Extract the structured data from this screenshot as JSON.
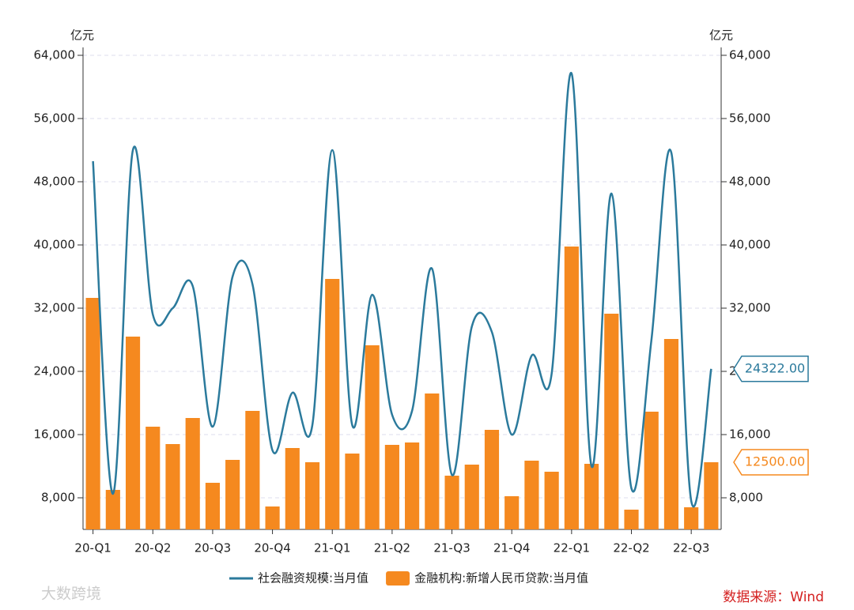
{
  "chart_data": {
    "type": "bar_line",
    "y_label": "亿元",
    "y2_label": "亿元",
    "categories": [
      "20-Q1",
      null,
      null,
      "20-Q2",
      null,
      null,
      "20-Q3",
      null,
      null,
      "20-Q4",
      null,
      null,
      "21-Q1",
      null,
      null,
      "21-Q2",
      null,
      null,
      "21-Q3",
      null,
      null,
      "21-Q4",
      null,
      null,
      "22-Q1",
      null,
      null,
      "22-Q2",
      null,
      null,
      "22-Q3",
      null
    ],
    "series": [
      {
        "name": "社会融资规模:当月值",
        "type": "line",
        "color": "#2b7a9c",
        "axis": "y2",
        "values": [
          50600,
          8500,
          52000,
          31200,
          32000,
          34800,
          17000,
          36000,
          35000,
          14000,
          21300,
          17200,
          52000,
          17200,
          33700,
          18500,
          19000,
          37000,
          10900,
          29700,
          29000,
          16000,
          26000,
          23700,
          61700,
          12000,
          46500,
          9200,
          27900,
          51700,
          7600,
          24322
        ],
        "value_labels": [
          null,
          null,
          null,
          null,
          null,
          null,
          null,
          null,
          null,
          null,
          null,
          null,
          null,
          null,
          null,
          null,
          null,
          null,
          null,
          null,
          null,
          null,
          null,
          null,
          null,
          null,
          null,
          null,
          null,
          null,
          null,
          "24322.00"
        ]
      },
      {
        "name": "金融机构:新增人民币贷款:当月值",
        "type": "bar",
        "color": "#f5891f",
        "values": [
          33300,
          9000,
          28400,
          17000,
          14800,
          18100,
          9900,
          12800,
          19000,
          6900,
          14300,
          12500,
          35700,
          13600,
          27300,
          14700,
          15000,
          21200,
          10800,
          12200,
          16600,
          8200,
          12700,
          11300,
          39800,
          12300,
          31300,
          6500,
          18900,
          28100,
          6800,
          12500
        ],
        "value_labels": [
          null,
          null,
          null,
          null,
          null,
          null,
          null,
          null,
          null,
          null,
          null,
          null,
          null,
          null,
          null,
          null,
          null,
          null,
          null,
          null,
          null,
          null,
          null,
          null,
          null,
          null,
          null,
          null,
          null,
          null,
          null,
          "12500.00"
        ]
      }
    ],
    "ylim": [
      4000,
      64000
    ],
    "yticks": [
      {
        "value": 8000,
        "label": "8,000"
      },
      {
        "value": 16000,
        "label": "16,000"
      },
      {
        "value": 24000,
        "label": "24,000"
      },
      {
        "value": 32000,
        "label": "32,000"
      },
      {
        "value": 40000,
        "label": "40,000"
      },
      {
        "value": 48000,
        "label": "48,000"
      },
      {
        "value": 56000,
        "label": "56,000"
      },
      {
        "value": 64000,
        "label": "64,000"
      }
    ],
    "y2lim": [
      4000,
      64000
    ],
    "y2ticks": [
      {
        "value": 8000,
        "label": "8,000"
      },
      {
        "value": 16000,
        "label": "16,000"
      },
      {
        "value": 24000,
        "label": "24,000"
      },
      {
        "value": 32000,
        "label": "32,000"
      },
      {
        "value": 40000,
        "label": "40,000"
      },
      {
        "value": 48000,
        "label": "48,000"
      },
      {
        "value": 56000,
        "label": "56,000"
      },
      {
        "value": 64000,
        "label": "64,000"
      }
    ],
    "grid": true,
    "legend": "bottom",
    "source": "数据来源：Wind",
    "watermark": "大数跨境"
  }
}
